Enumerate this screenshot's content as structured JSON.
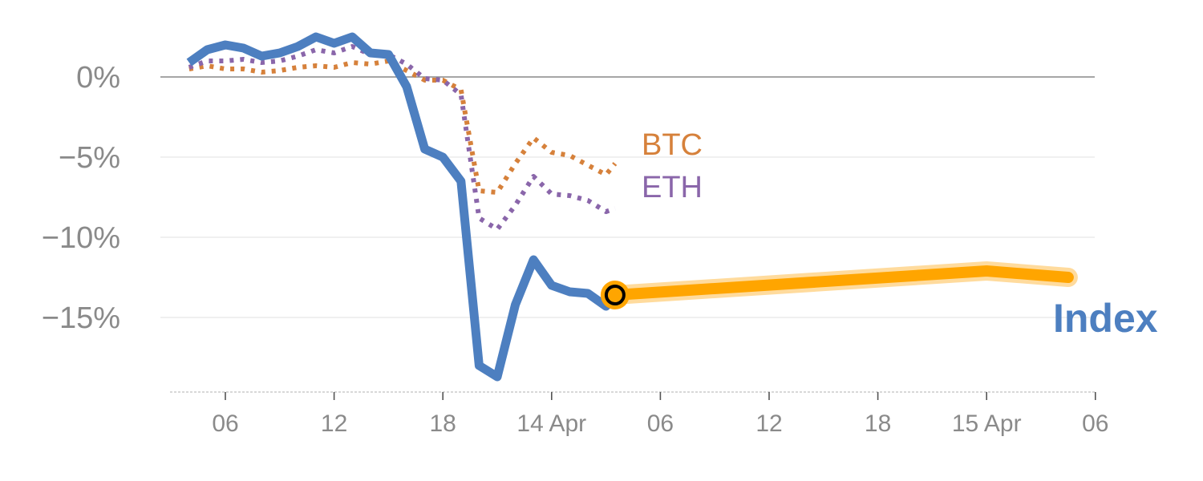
{
  "chart_data": {
    "type": "line",
    "title": "",
    "xlabel": "",
    "ylabel": "",
    "x_unit": "hour",
    "x_range": [
      "2024-04-13T03:00",
      "2024-04-15T06:00"
    ],
    "x_ticks": [
      {
        "label": "06",
        "x": "2024-04-13T06:00"
      },
      {
        "label": "12",
        "x": "2024-04-13T12:00"
      },
      {
        "label": "18",
        "x": "2024-04-13T18:00"
      },
      {
        "label": "14 Apr",
        "x": "2024-04-14T00:00"
      },
      {
        "label": "06",
        "x": "2024-04-14T06:00"
      },
      {
        "label": "12",
        "x": "2024-04-14T12:00"
      },
      {
        "label": "18",
        "x": "2024-04-14T18:00"
      },
      {
        "label": "15 Apr",
        "x": "2024-04-15T00:00"
      },
      {
        "label": "06",
        "x": "2024-04-15T06:00"
      }
    ],
    "ylim": [
      -19.5,
      3.5
    ],
    "y_ticks": [
      {
        "label": "0%",
        "value": 0
      },
      {
        "label": "−5%",
        "value": -5
      },
      {
        "label": "−10%",
        "value": -10
      },
      {
        "label": "−15%",
        "value": -15
      }
    ],
    "grid": true,
    "legend": "inline labels",
    "series": [
      {
        "name": "Index",
        "style": "solid",
        "color": "#4d7fc0",
        "points": [
          [
            "2024-04-13T04:00",
            0.9
          ],
          [
            "2024-04-13T05:00",
            1.7
          ],
          [
            "2024-04-13T06:00",
            2.0
          ],
          [
            "2024-04-13T07:00",
            1.8
          ],
          [
            "2024-04-13T08:00",
            1.3
          ],
          [
            "2024-04-13T09:00",
            1.5
          ],
          [
            "2024-04-13T10:00",
            1.9
          ],
          [
            "2024-04-13T11:00",
            2.5
          ],
          [
            "2024-04-13T12:00",
            2.1
          ],
          [
            "2024-04-13T13:00",
            2.5
          ],
          [
            "2024-04-13T14:00",
            1.5
          ],
          [
            "2024-04-13T15:00",
            1.4
          ],
          [
            "2024-04-13T16:00",
            -0.6
          ],
          [
            "2024-04-13T17:00",
            -4.5
          ],
          [
            "2024-04-13T18:00",
            -5.0
          ],
          [
            "2024-04-13T19:00",
            -6.5
          ],
          [
            "2024-04-13T20:00",
            -18.0
          ],
          [
            "2024-04-13T21:00",
            -18.7
          ],
          [
            "2024-04-13T22:00",
            -14.2
          ],
          [
            "2024-04-13T23:00",
            -11.4
          ],
          [
            "2024-04-14T00:00",
            -13.0
          ],
          [
            "2024-04-14T01:00",
            -13.4
          ],
          [
            "2024-04-14T02:00",
            -13.5
          ],
          [
            "2024-04-14T03:00",
            -14.3
          ],
          [
            "2024-04-14T03:30",
            -13.6
          ]
        ]
      },
      {
        "name": "BTC",
        "style": "dotted",
        "color": "#d6813b",
        "points": [
          [
            "2024-04-13T04:00",
            0.5
          ],
          [
            "2024-04-13T05:00",
            0.7
          ],
          [
            "2024-04-13T06:00",
            0.5
          ],
          [
            "2024-04-13T07:00",
            0.5
          ],
          [
            "2024-04-13T08:00",
            0.3
          ],
          [
            "2024-04-13T09:00",
            0.4
          ],
          [
            "2024-04-13T10:00",
            0.6
          ],
          [
            "2024-04-13T11:00",
            0.7
          ],
          [
            "2024-04-13T12:00",
            0.6
          ],
          [
            "2024-04-13T13:00",
            0.9
          ],
          [
            "2024-04-13T14:00",
            0.8
          ],
          [
            "2024-04-13T15:00",
            1.0
          ],
          [
            "2024-04-13T16:00",
            0.4
          ],
          [
            "2024-04-13T17:00",
            -0.2
          ],
          [
            "2024-04-13T18:00",
            -0.2
          ],
          [
            "2024-04-13T19:00",
            -0.8
          ],
          [
            "2024-04-13T20:00",
            -7.1
          ],
          [
            "2024-04-13T21:00",
            -7.2
          ],
          [
            "2024-04-13T22:00",
            -5.4
          ],
          [
            "2024-04-13T23:00",
            -3.8
          ],
          [
            "2024-04-14T00:00",
            -4.7
          ],
          [
            "2024-04-14T01:00",
            -4.9
          ],
          [
            "2024-04-14T02:00",
            -5.5
          ],
          [
            "2024-04-14T03:00",
            -6.1
          ],
          [
            "2024-04-14T03:30",
            -5.4
          ]
        ]
      },
      {
        "name": "ETH",
        "style": "dotted",
        "color": "#8a66aa",
        "points": [
          [
            "2024-04-13T04:00",
            0.6
          ],
          [
            "2024-04-13T05:00",
            1.0
          ],
          [
            "2024-04-13T06:00",
            1.0
          ],
          [
            "2024-04-13T07:00",
            1.1
          ],
          [
            "2024-04-13T08:00",
            0.9
          ],
          [
            "2024-04-13T09:00",
            1.0
          ],
          [
            "2024-04-13T10:00",
            1.3
          ],
          [
            "2024-04-13T11:00",
            1.7
          ],
          [
            "2024-04-13T12:00",
            1.5
          ],
          [
            "2024-04-13T13:00",
            1.9
          ],
          [
            "2024-04-13T14:00",
            1.4
          ],
          [
            "2024-04-13T15:00",
            1.4
          ],
          [
            "2024-04-13T16:00",
            0.8
          ],
          [
            "2024-04-13T17:00",
            -0.1
          ],
          [
            "2024-04-13T18:00",
            -0.2
          ],
          [
            "2024-04-13T19:00",
            -1.1
          ],
          [
            "2024-04-13T20:00",
            -8.8
          ],
          [
            "2024-04-13T21:00",
            -9.5
          ],
          [
            "2024-04-13T22:00",
            -8.0
          ],
          [
            "2024-04-13T23:00",
            -6.2
          ],
          [
            "2024-04-14T00:00",
            -7.3
          ],
          [
            "2024-04-14T01:00",
            -7.4
          ],
          [
            "2024-04-14T02:00",
            -7.7
          ],
          [
            "2024-04-14T03:00",
            -8.4
          ],
          [
            "2024-04-14T03:30",
            -8.2
          ]
        ]
      },
      {
        "name": "",
        "style": "highlight",
        "color": "#ffa500",
        "points": [
          [
            "2024-04-14T03:30",
            -13.6
          ],
          [
            "2024-04-15T00:00",
            -12.1
          ],
          [
            "2024-04-15T04:30",
            -12.5
          ]
        ]
      }
    ],
    "marker": {
      "x": "2024-04-14T03:30",
      "y": -13.6,
      "fill": "#ffa500",
      "stroke": "#000000"
    },
    "labels": {
      "index": "Index",
      "btc": "BTC",
      "eth": "ETH"
    },
    "colors": {
      "index": "#4d7fc0",
      "btc": "#d6813b",
      "eth": "#8a66aa",
      "highlight": "#ffa500",
      "highlight_halo": "#ffd58c",
      "tick_text": "#8a8a8a",
      "grid": "#e6e6e6",
      "zero_line": "#888888",
      "x_axis": "#cccccc"
    }
  }
}
